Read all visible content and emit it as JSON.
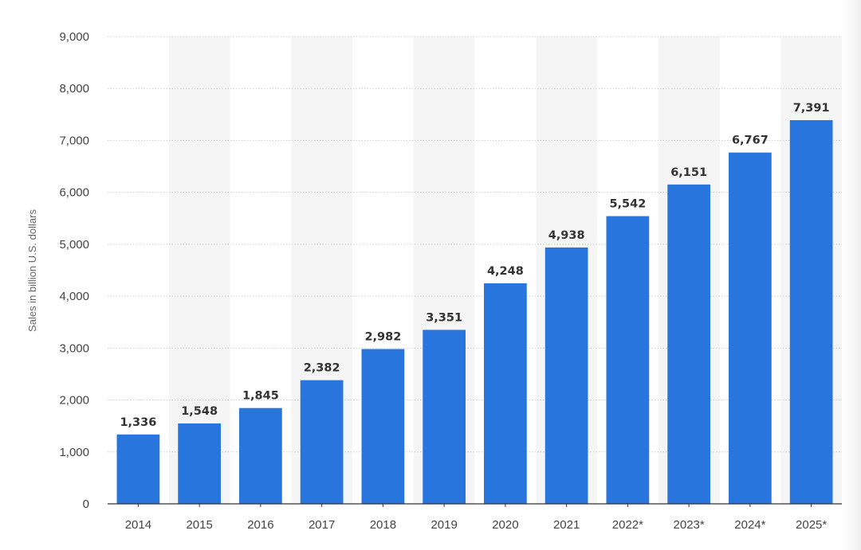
{
  "chart_data": {
    "type": "bar",
    "title": "",
    "xlabel": "",
    "ylabel": "Sales in billion U.S. dollars",
    "categories": [
      "2014",
      "2015",
      "2016",
      "2017",
      "2018",
      "2019",
      "2020",
      "2021",
      "2022*",
      "2023*",
      "2024*",
      "2025*"
    ],
    "values": [
      1336,
      1548,
      1845,
      2382,
      2982,
      3351,
      4248,
      4938,
      5542,
      6151,
      6767,
      7391
    ],
    "value_labels": [
      "1,336",
      "1,548",
      "1,845",
      "2,382",
      "2,982",
      "3,351",
      "4,248",
      "4,938",
      "5,542",
      "6,151",
      "6,767",
      "7,391"
    ],
    "ylim": [
      0,
      9000
    ],
    "yticks": [
      0,
      1000,
      2000,
      3000,
      4000,
      5000,
      6000,
      7000,
      8000,
      9000
    ],
    "ytick_labels": [
      "0",
      "1,000",
      "2,000",
      "3,000",
      "4,000",
      "5,000",
      "6,000",
      "7,000",
      "8,000",
      "9,000"
    ],
    "grid": true,
    "alternating_column_shading": true,
    "colors": {
      "bar": "#2876dd",
      "grid": "#cfcfcf",
      "band": "#f5f5f5",
      "axis": "#333333"
    }
  }
}
